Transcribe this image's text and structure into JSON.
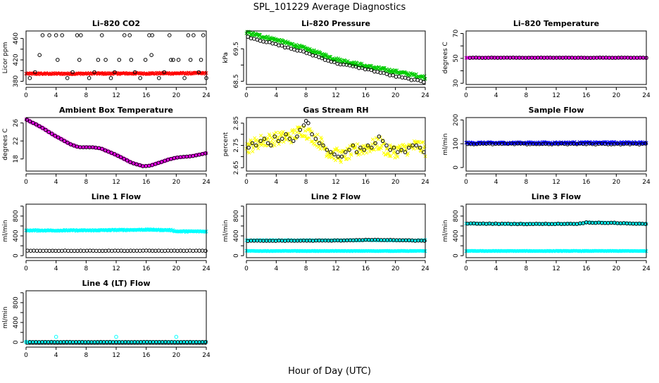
{
  "page": {
    "title": "SPL_101229  Average Diagnostics",
    "xlabel": "Hour of Day (UTC)"
  },
  "colors": {
    "black": "#000000",
    "red": "#ff0000",
    "green": "#00cc00",
    "magenta": "#ff00ff",
    "yellow": "#ffff00",
    "blue": "#0000ff",
    "cyan": "#00ffff"
  },
  "chart_data": [
    {
      "id": "co2",
      "type": "scatter",
      "title": "Li–820 CO2",
      "ylabel": "Licor ppm",
      "xlim": [
        0,
        24
      ],
      "ylim": [
        374,
        474
      ],
      "xticks": [
        0,
        4,
        8,
        12,
        16,
        20,
        24
      ],
      "yticks": [
        380,
        400,
        420,
        440,
        460
      ],
      "yticklabels": [
        "380",
        "",
        "420",
        "",
        "460"
      ],
      "series": [
        {
          "color": "red",
          "pch": "x",
          "x_start": 0.0,
          "x_end": 24.0,
          "n": 240,
          "y_start": 394,
          "y_end": 395,
          "jitter": 1.5
        },
        {
          "color": "black",
          "pch": "o",
          "x": [
            0.5,
            1.2,
            2.2,
            3.1,
            4.0,
            4.8,
            5.5,
            6.2,
            6.8,
            7.3,
            8.4,
            9.1,
            9.6,
            10.1,
            11.3,
            11.8,
            12.4,
            13.1,
            13.8,
            14.5,
            15.2,
            15.9,
            16.4,
            16.8,
            17.7,
            18.4,
            19.1,
            19.6,
            20.3,
            21.1,
            21.6,
            22.3,
            23.0,
            23.6,
            24.0
          ],
          "y": [
            386,
            397,
            466,
            466,
            466,
            466,
            386,
            397,
            466,
            466,
            386,
            397,
            420,
            466,
            386,
            397,
            420,
            466,
            466,
            397,
            386,
            420,
            466,
            466,
            386,
            397,
            466,
            420,
            420,
            386,
            466,
            466,
            397,
            466,
            386
          ]
        },
        {
          "color": "black",
          "pch": "o",
          "x": [
            1.8,
            4.2,
            7.1,
            10.6,
            14.0,
            16.7,
            19.3,
            21.9,
            23.3
          ],
          "y": [
            429,
            420,
            420,
            420,
            420,
            429,
            420,
            420,
            420
          ]
        }
      ]
    },
    {
      "id": "pressure",
      "type": "scatter",
      "title": "Li–820 Pressure",
      "ylabel": "kPa",
      "xlim": [
        0,
        24
      ],
      "ylim": [
        68.4,
        70.05
      ],
      "xticks": [
        0,
        4,
        8,
        12,
        16,
        20,
        24
      ],
      "yticks": [
        68.5,
        69.0,
        69.5
      ],
      "yticklabels": [
        "68.5",
        "",
        "69.5"
      ],
      "series": [
        {
          "color": "green",
          "pch": "x",
          "x_start": 0.0,
          "x_end": 24.0,
          "n": 260,
          "profile": [
            [
              0,
              70.0
            ],
            [
              4,
              69.78
            ],
            [
              8,
              69.5
            ],
            [
              12,
              69.18
            ],
            [
              16,
              68.97
            ],
            [
              20,
              68.8
            ],
            [
              24,
              68.62
            ]
          ],
          "jitter": 0.05
        },
        {
          "color": "black",
          "pch": "o",
          "x_start": 0.2,
          "x_end": 23.8,
          "n": 58,
          "profile": [
            [
              0,
              69.88
            ],
            [
              4,
              69.63
            ],
            [
              8,
              69.38
            ],
            [
              12,
              69.06
            ],
            [
              16,
              68.88
            ],
            [
              20,
              68.65
            ],
            [
              24,
              68.47
            ]
          ],
          "jitter": 0.02
        }
      ]
    },
    {
      "id": "licor_temp",
      "type": "scatter",
      "title": "Li–820 Temperature",
      "ylabel": "degrees C",
      "xlim": [
        0,
        24
      ],
      "ylim": [
        29,
        72
      ],
      "xticks": [
        0,
        4,
        8,
        12,
        16,
        20,
        24
      ],
      "yticks": [
        30,
        40,
        50,
        60,
        70
      ],
      "yticklabels": [
        "30",
        "",
        "50",
        "",
        "70"
      ],
      "series": [
        {
          "color": "magenta",
          "pch": "x",
          "x_start": 0.0,
          "x_end": 24.0,
          "n": 240,
          "y_start": 50.5,
          "y_end": 50.5,
          "jitter": 0.2
        },
        {
          "color": "black",
          "pch": "o",
          "x_start": 0.5,
          "x_end": 24.0,
          "n": 58,
          "y_start": 50.5,
          "y_end": 50.5,
          "jitter": 0.1
        }
      ]
    },
    {
      "id": "box_temp",
      "type": "scatter",
      "title": "Ambient Box Temperature",
      "ylabel": "degrees C",
      "xlim": [
        0,
        24
      ],
      "ylim": [
        15.3,
        27.2
      ],
      "xticks": [
        0,
        4,
        8,
        12,
        16,
        20,
        24
      ],
      "yticks": [
        18,
        22,
        26
      ],
      "yticklabels": [
        "18",
        "22",
        "26"
      ],
      "series": [
        {
          "color": "magenta",
          "pch": "x",
          "x_start": 0.0,
          "x_end": 24.0,
          "n": 240,
          "profile": [
            [
              0,
              26.8
            ],
            [
              2,
              25.1
            ],
            [
              4,
              23.0
            ],
            [
              6,
              21.2
            ],
            [
              7,
              20.6
            ],
            [
              9,
              20.6
            ],
            [
              10,
              20.3
            ],
            [
              12,
              18.9
            ],
            [
              14,
              17.2
            ],
            [
              15.5,
              16.4
            ],
            [
              16.5,
              16.5
            ],
            [
              18,
              17.3
            ],
            [
              19,
              17.9
            ],
            [
              20,
              18.3
            ],
            [
              22,
              18.6
            ],
            [
              24,
              19.3
            ]
          ],
          "jitter": 0.05
        },
        {
          "color": "black",
          "pch": "o",
          "x_start": 0.1,
          "x_end": 23.9,
          "n": 58,
          "profile": [
            [
              0,
              26.8
            ],
            [
              2,
              25.1
            ],
            [
              4,
              23.0
            ],
            [
              6,
              21.2
            ],
            [
              7,
              20.6
            ],
            [
              9,
              20.6
            ],
            [
              10,
              20.3
            ],
            [
              12,
              18.9
            ],
            [
              14,
              17.2
            ],
            [
              15.5,
              16.4
            ],
            [
              16.5,
              16.5
            ],
            [
              18,
              17.3
            ],
            [
              19,
              17.9
            ],
            [
              20,
              18.3
            ],
            [
              22,
              18.6
            ],
            [
              24,
              19.3
            ]
          ],
          "jitter": 0.03
        }
      ]
    },
    {
      "id": "rh",
      "type": "scatter",
      "title": "Gas Stream RH",
      "ylabel": "percent",
      "xlim": [
        0,
        24
      ],
      "ylim": [
        2.635,
        2.875
      ],
      "xticks": [
        0,
        4,
        8,
        12,
        16,
        20,
        24
      ],
      "yticks": [
        2.65,
        2.7,
        2.75,
        2.8,
        2.85
      ],
      "yticklabels": [
        "2.65",
        "",
        "2.75",
        "",
        "2.85"
      ],
      "series": [
        {
          "color": "yellow",
          "pch": "x",
          "x_start": 0.0,
          "x_end": 24.0,
          "n": 260,
          "profile": [
            [
              0,
              2.74
            ],
            [
              2,
              2.77
            ],
            [
              4,
              2.78
            ],
            [
              6,
              2.79
            ],
            [
              7.5,
              2.82
            ],
            [
              8.5,
              2.8
            ],
            [
              10,
              2.76
            ],
            [
              11,
              2.72
            ],
            [
              13,
              2.7
            ],
            [
              14,
              2.72
            ],
            [
              16,
              2.74
            ],
            [
              18,
              2.76
            ],
            [
              19,
              2.72
            ],
            [
              21,
              2.73
            ],
            [
              23,
              2.75
            ],
            [
              24,
              2.73
            ]
          ],
          "jitter": 0.03
        },
        {
          "color": "black",
          "pch": "o",
          "x": [
            0.3,
            0.8,
            1.3,
            1.9,
            2.4,
            2.9,
            3.3,
            3.8,
            4.3,
            4.8,
            5.3,
            5.8,
            6.3,
            6.8,
            7.2,
            7.7,
            8.0,
            8.3,
            8.8,
            9.3,
            9.8,
            10.3,
            10.8,
            11.3,
            11.8,
            12.3,
            12.8,
            13.3,
            13.8,
            14.3,
            14.8,
            15.3,
            15.8,
            16.3,
            16.8,
            17.3,
            17.8,
            18.3,
            18.8,
            19.3,
            19.8,
            20.3,
            20.8,
            21.3,
            21.8,
            22.3,
            22.8,
            23.3,
            23.8
          ],
          "y": [
            2.74,
            2.76,
            2.75,
            2.77,
            2.78,
            2.76,
            2.75,
            2.79,
            2.77,
            2.78,
            2.8,
            2.78,
            2.77,
            2.79,
            2.82,
            2.84,
            2.86,
            2.85,
            2.8,
            2.78,
            2.76,
            2.75,
            2.73,
            2.72,
            2.71,
            2.7,
            2.7,
            2.72,
            2.73,
            2.75,
            2.72,
            2.74,
            2.73,
            2.75,
            2.74,
            2.76,
            2.79,
            2.77,
            2.75,
            2.73,
            2.74,
            2.72,
            2.73,
            2.72,
            2.74,
            2.75,
            2.75,
            2.74,
            2.72
          ]
        }
      ]
    },
    {
      "id": "sample_flow",
      "type": "scatter",
      "title": "Sample Flow",
      "ylabel": "ml/min",
      "xlim": [
        0,
        24
      ],
      "ylim": [
        -15,
        210
      ],
      "xticks": [
        0,
        4,
        8,
        12,
        16,
        20,
        24
      ],
      "yticks": [
        0,
        100,
        200
      ],
      "yticklabels": [
        "0",
        "100",
        "200"
      ],
      "series": [
        {
          "color": "blue",
          "pch": "x",
          "x_start": 0.0,
          "x_end": 24.0,
          "n": 260,
          "y_start": 103,
          "y_end": 104,
          "jitter": 4
        },
        {
          "color": "black",
          "pch": "o",
          "x_start": 0.2,
          "x_end": 23.9,
          "n": 58,
          "y_start": 99,
          "y_end": 99,
          "jitter": 2
        }
      ]
    },
    {
      "id": "line1",
      "type": "scatter",
      "title": "Line 1 Flow",
      "ylabel": "ml/min",
      "xlim": [
        0,
        24
      ],
      "ylim": [
        -40,
        1040
      ],
      "xticks": [
        0,
        4,
        8,
        12,
        16,
        20,
        24
      ],
      "yticks": [
        0,
        200,
        400,
        600,
        800,
        1000
      ],
      "yticklabels": [
        "0",
        "",
        "400",
        "",
        "800",
        ""
      ],
      "series": [
        {
          "color": "cyan",
          "pch": "x",
          "x_start": 0.0,
          "x_end": 24.0,
          "n": 260,
          "profile": [
            [
              0,
              510
            ],
            [
              8,
              510
            ],
            [
              16,
              525
            ],
            [
              19.5,
              515
            ],
            [
              20,
              490
            ],
            [
              24,
              490
            ]
          ],
          "jitter": 12
        },
        {
          "color": "black",
          "pch": "o",
          "x_start": 0.2,
          "x_end": 23.9,
          "n": 58,
          "y_start": 100,
          "y_end": 100,
          "jitter": 3
        }
      ]
    },
    {
      "id": "line2",
      "type": "scatter",
      "title": "Line 2 Flow",
      "ylabel": "ml/min",
      "xlim": [
        0,
        24
      ],
      "ylim": [
        -40,
        1040
      ],
      "xticks": [
        0,
        4,
        8,
        12,
        16,
        20,
        24
      ],
      "yticks": [
        0,
        200,
        400,
        600,
        800,
        1000
      ],
      "yticklabels": [
        "0",
        "",
        "400",
        "",
        "800",
        ""
      ],
      "series": [
        {
          "color": "cyan",
          "pch": "x",
          "x_start": 0.0,
          "x_end": 24.0,
          "n": 260,
          "y_start": 95,
          "y_end": 95,
          "jitter": 6
        },
        {
          "color": "cyan",
          "pch": "x",
          "x_start": 0.0,
          "x_end": 24.0,
          "n": 200,
          "y_start": 310,
          "y_end": 310,
          "jitter": 8
        },
        {
          "color": "black",
          "pch": "o",
          "x_start": 0.2,
          "x_end": 23.9,
          "n": 58,
          "profile": [
            [
              0,
              300
            ],
            [
              12,
              305
            ],
            [
              16,
              320
            ],
            [
              20,
              315
            ],
            [
              24,
              300
            ]
          ],
          "jitter": 4
        }
      ]
    },
    {
      "id": "line3",
      "type": "scatter",
      "title": "Line 3 Flow",
      "ylabel": "ml/min",
      "xlim": [
        0,
        24
      ],
      "ylim": [
        -40,
        1040
      ],
      "xticks": [
        0,
        4,
        8,
        12,
        16,
        20,
        24
      ],
      "yticks": [
        0,
        200,
        400,
        600,
        800,
        1000
      ],
      "yticklabels": [
        "0",
        "",
        "400",
        "",
        "800",
        ""
      ],
      "series": [
        {
          "color": "cyan",
          "pch": "x",
          "x_start": 0.0,
          "x_end": 24.0,
          "n": 260,
          "y_start": 95,
          "y_end": 95,
          "jitter": 6
        },
        {
          "color": "cyan",
          "pch": "x",
          "x_start": 0.0,
          "x_end": 24.0,
          "n": 200,
          "profile": [
            [
              0,
              650
            ],
            [
              8,
              640
            ],
            [
              15,
              645
            ],
            [
              16,
              670
            ],
            [
              20,
              660
            ],
            [
              24,
              640
            ]
          ],
          "jitter": 8
        },
        {
          "color": "black",
          "pch": "o",
          "x_start": 0.2,
          "x_end": 23.9,
          "n": 58,
          "profile": [
            [
              0,
              650
            ],
            [
              8,
              640
            ],
            [
              15,
              645
            ],
            [
              16,
              670
            ],
            [
              20,
              660
            ],
            [
              24,
              640
            ]
          ],
          "jitter": 5
        }
      ]
    },
    {
      "id": "line4",
      "type": "scatter",
      "title": "Line 4 (LT) Flow",
      "ylabel": "ml/min",
      "xlim": [
        0,
        24
      ],
      "ylim": [
        -40,
        1040
      ],
      "xticks": [
        0,
        4,
        8,
        12,
        16,
        20,
        24
      ],
      "yticks": [
        0,
        200,
        400,
        600,
        800,
        1000
      ],
      "yticklabels": [
        "0",
        "",
        "400",
        "",
        "800",
        ""
      ],
      "series": [
        {
          "color": "cyan",
          "pch": "x",
          "x_start": 0.0,
          "x_end": 24.0,
          "n": 260,
          "y_start": 5,
          "y_end": 5,
          "jitter": 4
        },
        {
          "color": "cyan",
          "pch": "o",
          "x": [
            4.0,
            12.0,
            20.0,
            0.0
          ],
          "y": [
            110,
            110,
            110,
            10
          ]
        },
        {
          "color": "black",
          "pch": "o",
          "x_start": 0.5,
          "x_end": 23.9,
          "n": 58,
          "y_start": 5,
          "y_end": 5,
          "jitter": 2
        }
      ]
    }
  ]
}
